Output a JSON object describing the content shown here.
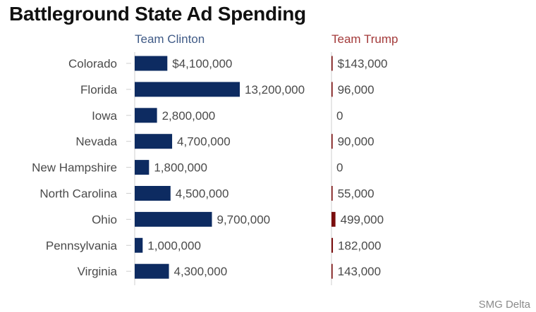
{
  "title": "Battleground State Ad Spending",
  "credit": "SMG Delta",
  "colors": {
    "clinton": "#0d2b61",
    "trump": "#7a0d0d",
    "clinton_header": "#3f5a86",
    "trump_header": "#a33a3a",
    "label": "#4a4a4a",
    "axis": "#cfcfcf"
  },
  "chart_data": {
    "type": "bar",
    "orientation": "horizontal",
    "categories": [
      "Colorado",
      "Florida",
      "Iowa",
      "Nevada",
      "New Hampshire",
      "North Carolina",
      "Ohio",
      "Pennsylvania",
      "Virginia"
    ],
    "series": [
      {
        "name": "Team Clinton",
        "values": [
          4100000,
          13200000,
          2800000,
          4700000,
          1800000,
          4500000,
          9700000,
          1000000,
          4300000
        ],
        "labels": [
          "$4,100,000",
          "13,200,000",
          "2,800,000",
          "4,700,000",
          "1,800,000",
          "4,500,000",
          "9,700,000",
          "1,000,000",
          "4,300,000"
        ]
      },
      {
        "name": "Team Trump",
        "values": [
          143000,
          96000,
          0,
          90000,
          0,
          55000,
          499000,
          182000,
          143000
        ],
        "labels": [
          "$143,000",
          "96,000",
          "0",
          "90,000",
          "0",
          "55,000",
          "499,000",
          "182,000",
          "143,000"
        ]
      }
    ],
    "xlim": [
      0,
      13200000
    ],
    "grid": false,
    "legend": "top"
  }
}
